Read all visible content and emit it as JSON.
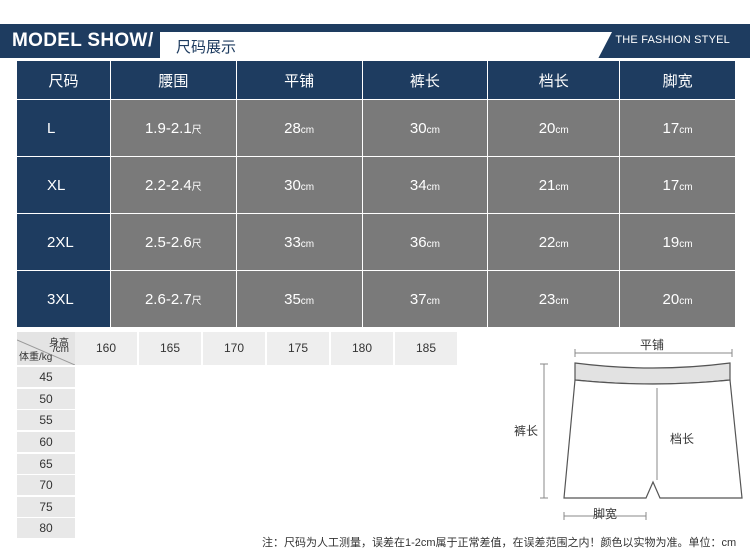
{
  "header": {
    "title": "MODEL SHOW",
    "slash": "/",
    "subtitle": "尺码展示",
    "tagline": "THE FASHION STYEL"
  },
  "size_table": {
    "headers": [
      "尺码",
      "腰围",
      "平铺",
      "裤长",
      "档长",
      "脚宽"
    ],
    "rows": [
      {
        "size": "L",
        "waist": "1.9-2.1",
        "waist_unit": "尺",
        "flat": "28",
        "length": "30",
        "crotch": "20",
        "leg": "17"
      },
      {
        "size": "XL",
        "waist": "2.2-2.4",
        "waist_unit": "尺",
        "flat": "30",
        "length": "34",
        "crotch": "21",
        "leg": "17"
      },
      {
        "size": "2XL",
        "waist": "2.5-2.6",
        "waist_unit": "尺",
        "flat": "33",
        "length": "36",
        "crotch": "22",
        "leg": "19"
      },
      {
        "size": "3XL",
        "waist": "2.6-2.7",
        "waist_unit": "尺",
        "flat": "35",
        "length": "37",
        "crotch": "23",
        "leg": "20"
      }
    ],
    "cm_unit": "cm"
  },
  "height_weight": {
    "corner_height_label": "身高",
    "corner_unit_label": "/cm",
    "corner_weight_label": "体重/kg",
    "heights": [
      "160",
      "165",
      "170",
      "175",
      "180",
      "185"
    ],
    "weights": [
      "45",
      "50",
      "55",
      "60",
      "65",
      "70",
      "75",
      "80"
    ]
  },
  "diagram": {
    "flat_label": "平铺",
    "length_label": "裤长",
    "crotch_label": "档长",
    "leg_label": "脚宽"
  },
  "note": "注：尺码为人工测量，误差在1-2cm属于正常差值，在误差范围之内！颜色以实物为准。单位：cm"
}
